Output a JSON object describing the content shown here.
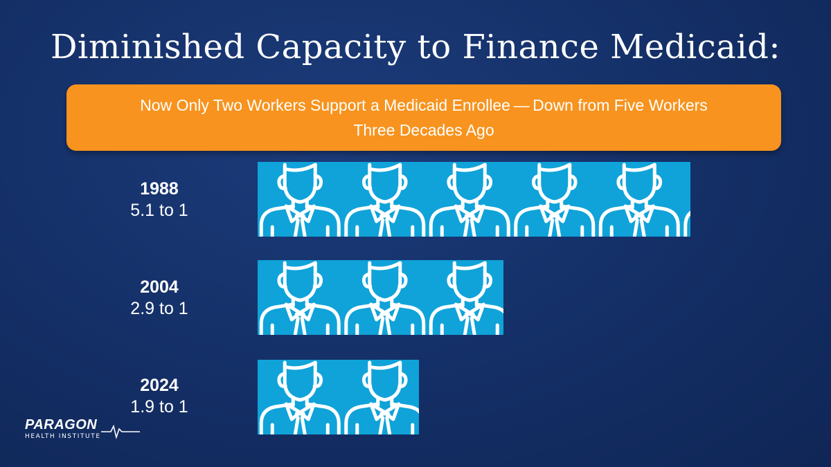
{
  "header": {
    "title": "Diminished Capacity to Finance Medicaid:",
    "subtitle": "Now Only Two Workers Support a Medicaid Enrollee — Down from Five Workers Three Decades Ago"
  },
  "chart_data": {
    "type": "bar",
    "orientation": "horizontal",
    "unit_icon": "worker-icon",
    "categories": [
      "1988",
      "2004",
      "2024"
    ],
    "values": [
      5.1,
      2.9,
      1.9
    ],
    "value_labels": [
      "5.1 to 1",
      "2.9 to 1",
      "1.9 to 1"
    ],
    "title": "Diminished Capacity to Finance Medicaid:",
    "xlabel": "",
    "ylabel": "",
    "grid": false,
    "colors": {
      "bar": "#0fa3d9",
      "icon_line": "#ffffff"
    }
  },
  "logo": {
    "name": "PARAGON",
    "sub": "HEALTH INSTITUTE"
  },
  "colors": {
    "background": "#142f66",
    "banner": "#f7931e",
    "text": "#ffffff"
  }
}
